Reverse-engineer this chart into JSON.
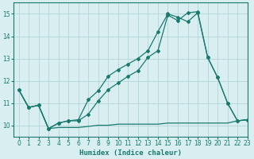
{
  "line1_x": [
    0,
    1,
    2,
    3,
    4,
    5,
    6,
    7,
    8,
    9,
    10,
    11,
    12,
    13,
    14,
    15,
    16,
    17,
    18,
    19,
    20,
    21,
    22,
    23
  ],
  "line1_y": [
    11.6,
    10.8,
    10.9,
    9.85,
    10.1,
    10.2,
    10.2,
    10.5,
    11.1,
    11.6,
    11.9,
    12.2,
    12.45,
    13.05,
    13.35,
    14.95,
    14.7,
    15.05,
    15.1,
    13.05,
    12.15,
    11.0,
    10.2,
    10.25
  ],
  "line2_x": [
    0,
    1,
    2,
    3,
    4,
    5,
    6,
    7,
    8,
    9,
    10,
    11,
    12,
    13,
    14,
    15,
    16,
    17,
    18,
    19,
    20,
    21,
    22,
    23
  ],
  "line2_y": [
    11.6,
    10.8,
    10.9,
    9.85,
    10.1,
    10.2,
    10.25,
    11.15,
    11.55,
    12.2,
    12.5,
    12.75,
    13.0,
    13.35,
    14.2,
    15.0,
    14.85,
    14.65,
    15.05,
    13.05,
    12.15,
    11.0,
    10.2,
    10.25
  ],
  "line3_x": [
    0,
    1,
    2,
    3,
    4,
    5,
    6,
    7,
    8,
    9,
    10,
    11,
    12,
    13,
    14,
    15,
    16,
    17,
    18,
    19,
    20,
    21,
    22,
    23
  ],
  "line3_y": [
    11.6,
    10.8,
    10.9,
    9.85,
    9.9,
    9.9,
    9.9,
    9.95,
    10.0,
    10.0,
    10.05,
    10.05,
    10.05,
    10.05,
    10.05,
    10.1,
    10.1,
    10.1,
    10.1,
    10.1,
    10.1,
    10.1,
    10.2,
    10.25
  ],
  "color": "#1a7a6e",
  "bg_color": "#d8eef0",
  "grid_color": "#b8d8dc",
  "xlabel": "Humidex (Indice chaleur)",
  "xlim": [
    -0.5,
    23
  ],
  "ylim": [
    9.5,
    15.5
  ],
  "yticks": [
    10,
    11,
    12,
    13,
    14,
    15
  ],
  "xticks": [
    0,
    1,
    2,
    3,
    4,
    5,
    6,
    7,
    8,
    9,
    10,
    11,
    12,
    13,
    14,
    15,
    16,
    17,
    18,
    19,
    20,
    21,
    22,
    23
  ],
  "tick_fontsize": 5.5,
  "xlabel_fontsize": 6.5
}
